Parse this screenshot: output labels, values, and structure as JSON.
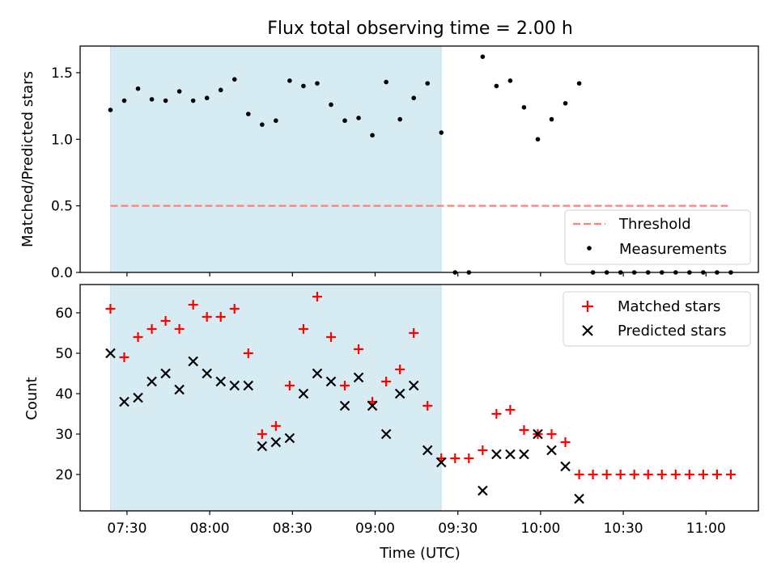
{
  "title": "Flux total observing time = 2.00 h",
  "chart_data": [
    {
      "type": "scatter",
      "ylabel": "Matched/Predicted stars",
      "ylim": [
        0,
        1.7
      ],
      "yticks": [
        "0.0",
        "0.5",
        "1.0",
        "1.5"
      ],
      "xlim": [
        "07:13",
        "11:19"
      ],
      "shaded_range": [
        "07:24",
        "09:24"
      ],
      "threshold": {
        "name": "Threshold",
        "value": 0.5,
        "x_range": [
          "07:24",
          "11:09"
        ],
        "color": "#ff7f7f"
      },
      "series": [
        {
          "name": "Measurements",
          "color": "#000000",
          "x": [
            "07:24",
            "07:29",
            "07:34",
            "07:39",
            "07:44",
            "07:49",
            "07:54",
            "07:59",
            "08:04",
            "08:09",
            "08:14",
            "08:19",
            "08:24",
            "08:29",
            "08:34",
            "08:39",
            "08:44",
            "08:49",
            "08:54",
            "08:59",
            "09:04",
            "09:09",
            "09:14",
            "09:19",
            "09:24",
            "09:29",
            "09:34",
            "09:39",
            "09:44",
            "09:49",
            "09:54",
            "09:59",
            "10:04",
            "10:09",
            "10:14",
            "10:19",
            "10:24",
            "10:29",
            "10:34",
            "10:39",
            "10:44",
            "10:49",
            "10:54",
            "10:59",
            "11:04",
            "11:09"
          ],
          "y": [
            1.22,
            1.29,
            1.38,
            1.3,
            1.29,
            1.36,
            1.29,
            1.31,
            1.37,
            1.45,
            1.19,
            1.11,
            1.14,
            1.44,
            1.4,
            1.42,
            1.26,
            1.14,
            1.16,
            1.03,
            1.43,
            1.15,
            1.31,
            1.42,
            1.05,
            0,
            0,
            1.62,
            1.4,
            1.44,
            1.24,
            1.0,
            1.15,
            1.27,
            1.42,
            0,
            0,
            0,
            0,
            0,
            0,
            0,
            0,
            0,
            0,
            0
          ]
        }
      ],
      "legend_position": "lower-right"
    },
    {
      "type": "scatter",
      "xlabel": "Time (UTC)",
      "ylabel": "Count",
      "ylim": [
        11,
        67
      ],
      "yticks": [
        "20",
        "30",
        "40",
        "50",
        "60"
      ],
      "xticks": [
        "07:30",
        "08:00",
        "08:30",
        "09:00",
        "09:30",
        "10:00",
        "10:30",
        "11:00"
      ],
      "xlim": [
        "07:13",
        "11:19"
      ],
      "shaded_range": [
        "07:24",
        "09:24"
      ],
      "series": [
        {
          "name": "Matched stars",
          "marker": "+",
          "color": "#ff0000",
          "x": [
            "07:24",
            "07:29",
            "07:34",
            "07:39",
            "07:44",
            "07:49",
            "07:54",
            "07:59",
            "08:04",
            "08:09",
            "08:14",
            "08:19",
            "08:24",
            "08:29",
            "08:34",
            "08:39",
            "08:44",
            "08:49",
            "08:54",
            "08:59",
            "09:04",
            "09:09",
            "09:14",
            "09:19",
            "09:24",
            "09:29",
            "09:34",
            "09:39",
            "09:44",
            "09:49",
            "09:54",
            "09:59",
            "10:04",
            "10:09",
            "10:14",
            "10:19",
            "10:24",
            "10:29",
            "10:34",
            "10:39",
            "10:44",
            "10:49",
            "10:54",
            "10:59",
            "11:04",
            "11:09"
          ],
          "y": [
            61,
            49,
            54,
            56,
            58,
            56,
            62,
            59,
            59,
            61,
            50,
            30,
            32,
            42,
            56,
            64,
            54,
            42,
            51,
            38,
            43,
            46,
            55,
            37,
            24,
            24,
            24,
            26,
            35,
            36,
            31,
            30,
            30,
            28,
            20,
            20,
            20,
            20,
            20,
            20,
            20,
            20,
            20,
            20,
            20,
            20
          ]
        },
        {
          "name": "Predicted stars",
          "marker": "x",
          "color": "#000000",
          "x": [
            "07:24",
            "07:29",
            "07:34",
            "07:39",
            "07:44",
            "07:49",
            "07:54",
            "07:59",
            "08:04",
            "08:09",
            "08:14",
            "08:19",
            "08:24",
            "08:29",
            "08:34",
            "08:39",
            "08:44",
            "08:49",
            "08:54",
            "08:59",
            "09:04",
            "09:09",
            "09:14",
            "09:19",
            "09:24",
            "09:39",
            "09:44",
            "09:49",
            "09:54",
            "09:59",
            "10:04",
            "10:09",
            "10:14"
          ],
          "y": [
            50,
            38,
            39,
            43,
            45,
            41,
            48,
            45,
            43,
            42,
            42,
            27,
            28,
            29,
            40,
            45,
            43,
            37,
            44,
            37,
            30,
            40,
            42,
            26,
            23,
            16,
            25,
            25,
            25,
            30,
            26,
            22,
            14
          ]
        }
      ],
      "legend_position": "upper-right"
    }
  ]
}
